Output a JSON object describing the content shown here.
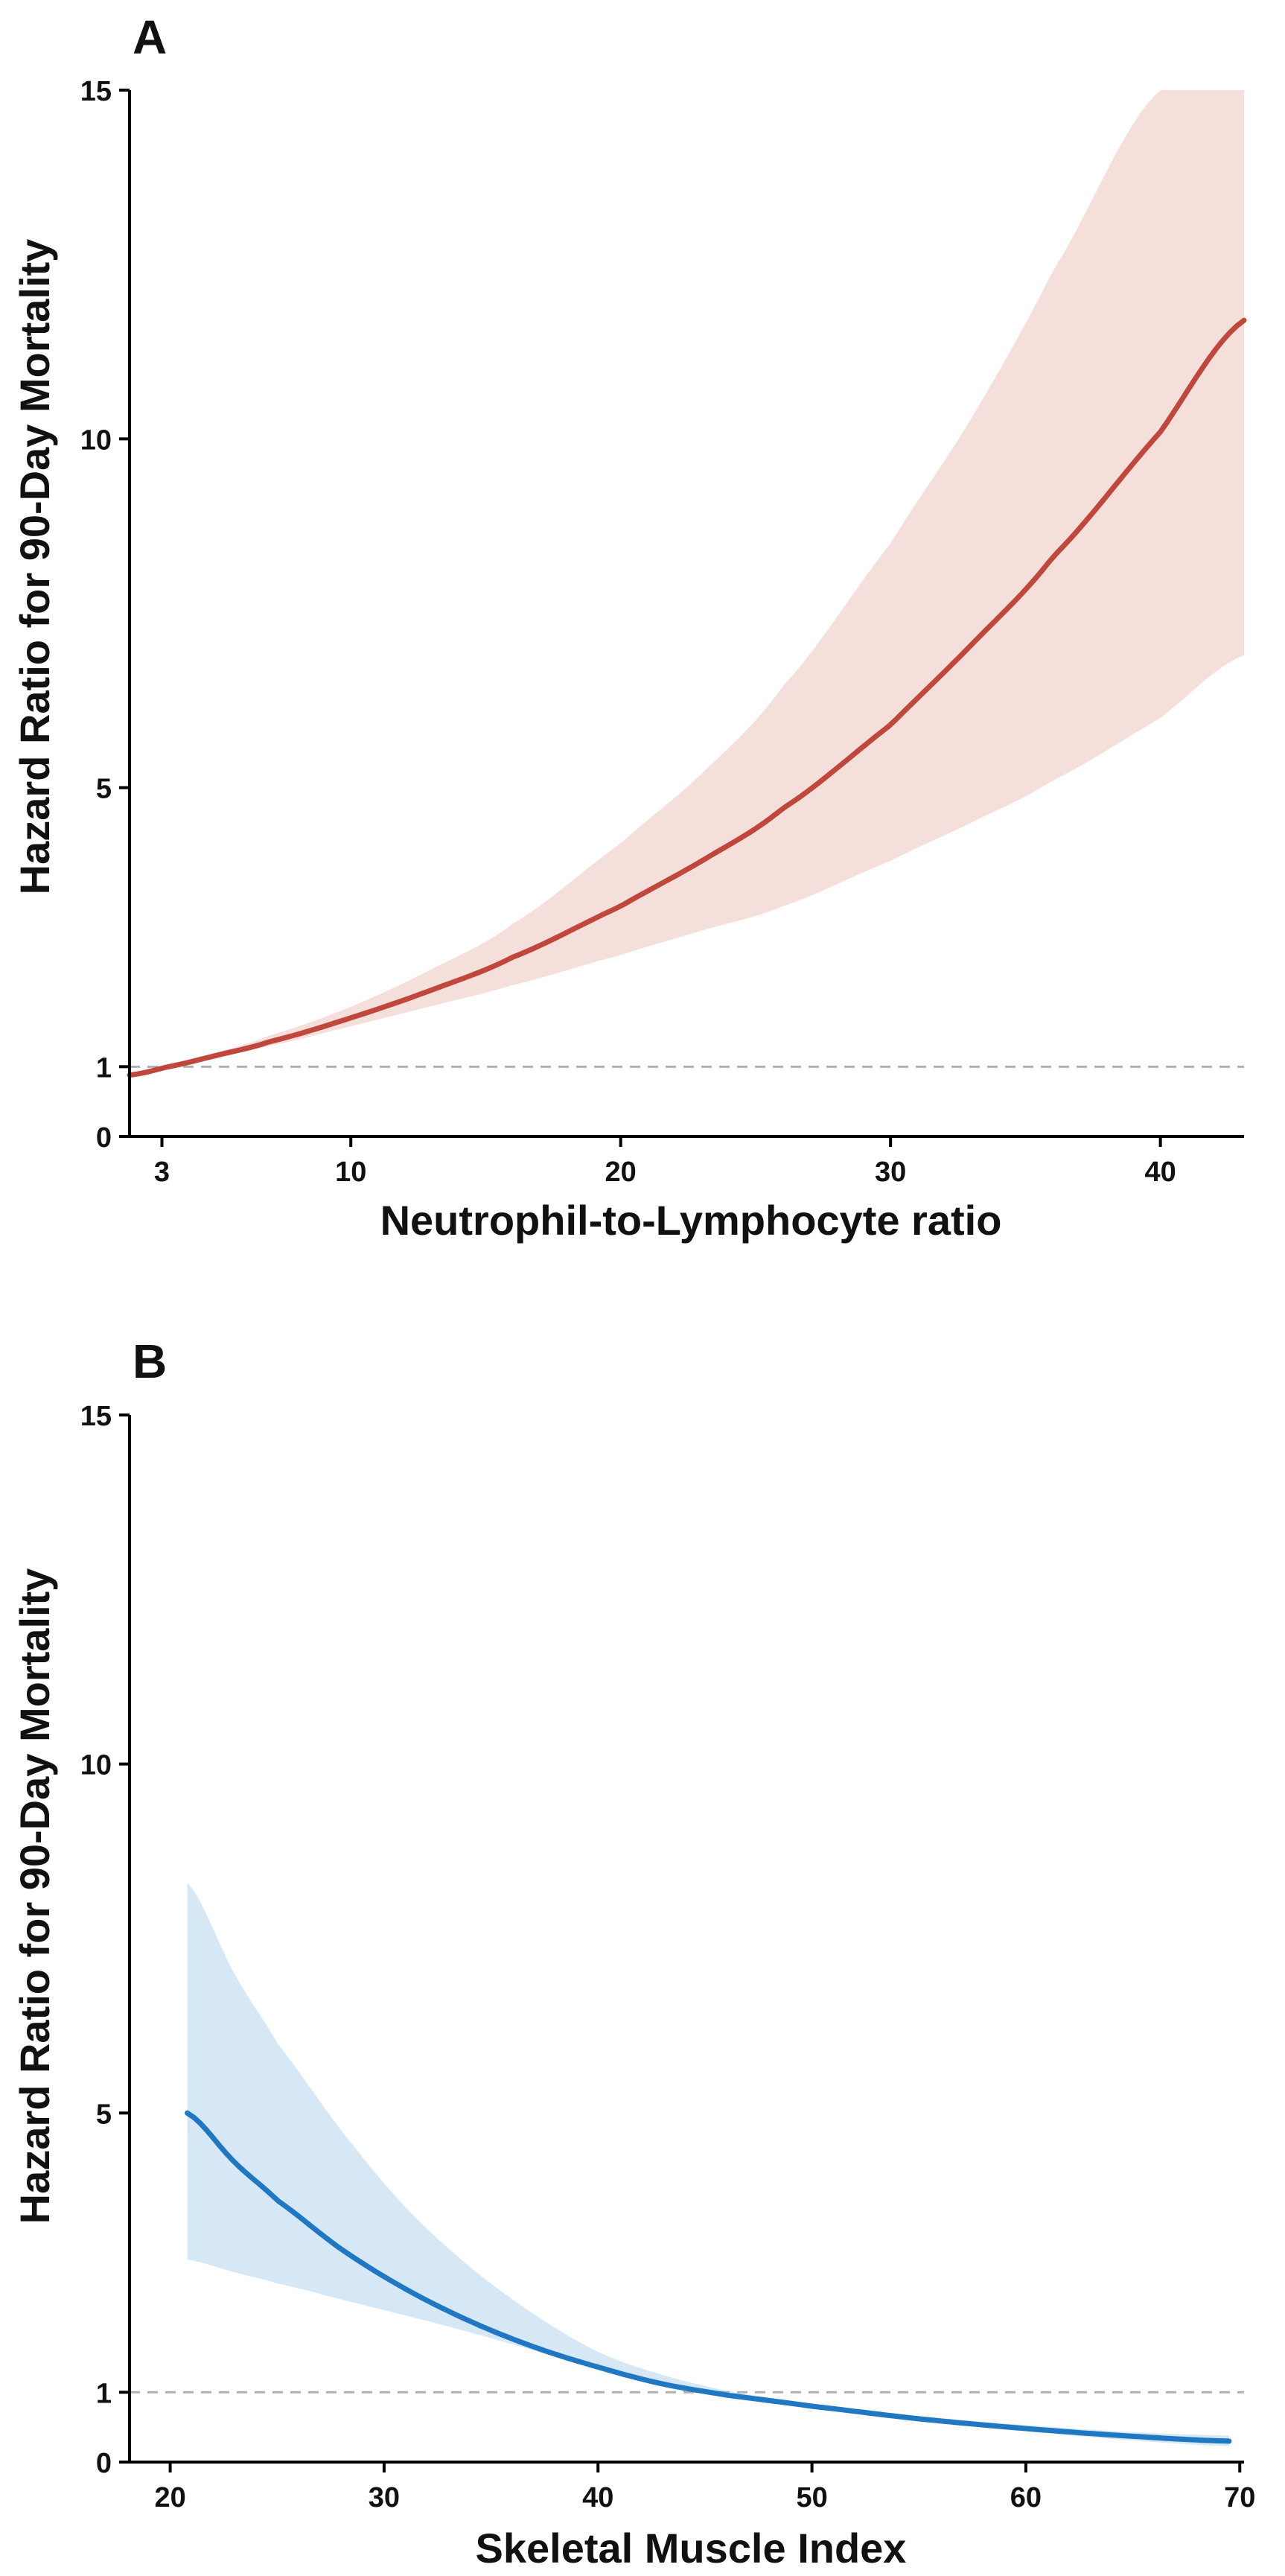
{
  "figure": {
    "panels": [
      {
        "letter": "A"
      },
      {
        "letter": "B"
      }
    ]
  },
  "chart_data": [
    {
      "type": "line",
      "panel": "A",
      "title": "",
      "xlabel": "Neutrophil-to-Lymphocyte ratio",
      "ylabel": "Hazard Ratio for 90-Day Mortality",
      "xlim": [
        1.8,
        43.1
      ],
      "ylim": [
        0,
        15
      ],
      "xticks": [
        3,
        10,
        20,
        30,
        40
      ],
      "yticks": [
        0,
        1,
        5,
        10,
        15
      ],
      "reference_line": {
        "y": 1,
        "style": "dashed",
        "color": "#b0b0b0"
      },
      "grid": false,
      "line_color": "#c0473b",
      "band_color": "#f5dfdb",
      "series": [
        {
          "name": "Hazard ratio",
          "x": [
            1.8,
            3,
            5,
            7,
            10,
            13,
            16,
            20,
            23,
            26,
            30,
            33,
            36,
            40,
            43.1
          ],
          "y": [
            0.88,
            0.98,
            1.16,
            1.36,
            1.7,
            2.1,
            2.57,
            3.3,
            3.95,
            4.7,
            5.9,
            7.05,
            8.3,
            10.1,
            11.7
          ],
          "lower": [
            0.88,
            0.97,
            1.13,
            1.3,
            1.58,
            1.87,
            2.17,
            2.6,
            2.95,
            3.3,
            3.95,
            4.5,
            5.1,
            6.0,
            6.9
          ],
          "upper": [
            0.88,
            0.99,
            1.2,
            1.45,
            1.86,
            2.4,
            3.05,
            4.2,
            5.2,
            6.45,
            8.5,
            10.3,
            12.4,
            15.0,
            15.0
          ]
        }
      ]
    },
    {
      "type": "line",
      "panel": "B",
      "title": "",
      "xlabel": "Skeletal Muscle Index",
      "ylabel": "Hazard Ratio for 90-Day Mortality",
      "xlim": [
        18.1,
        70.2
      ],
      "ylim": [
        0,
        15
      ],
      "xticks": [
        20,
        30,
        40,
        50,
        60,
        70
      ],
      "yticks": [
        0,
        1,
        5,
        10,
        15
      ],
      "reference_line": {
        "y": 1,
        "style": "dashed",
        "color": "#b0b0b0"
      },
      "grid": false,
      "line_color": "#1f78c1",
      "band_color": "#d6e7f5",
      "series": [
        {
          "name": "Hazard ratio",
          "x": [
            20.8,
            23,
            25,
            28,
            31,
            34,
            37,
            40,
            43,
            46,
            50,
            55,
            60,
            65,
            69.5
          ],
          "y": [
            5.0,
            4.3,
            3.75,
            3.05,
            2.48,
            2.02,
            1.65,
            1.36,
            1.12,
            0.96,
            0.8,
            0.62,
            0.48,
            0.37,
            0.3
          ],
          "lower": [
            2.9,
            2.72,
            2.56,
            2.33,
            2.1,
            1.86,
            1.6,
            1.34,
            1.1,
            0.94,
            0.78,
            0.59,
            0.44,
            0.31,
            0.23
          ],
          "upper": [
            8.3,
            7.0,
            6.0,
            4.75,
            3.65,
            2.8,
            2.12,
            1.58,
            1.25,
            1.02,
            0.83,
            0.66,
            0.53,
            0.43,
            0.38
          ]
        }
      ]
    }
  ]
}
